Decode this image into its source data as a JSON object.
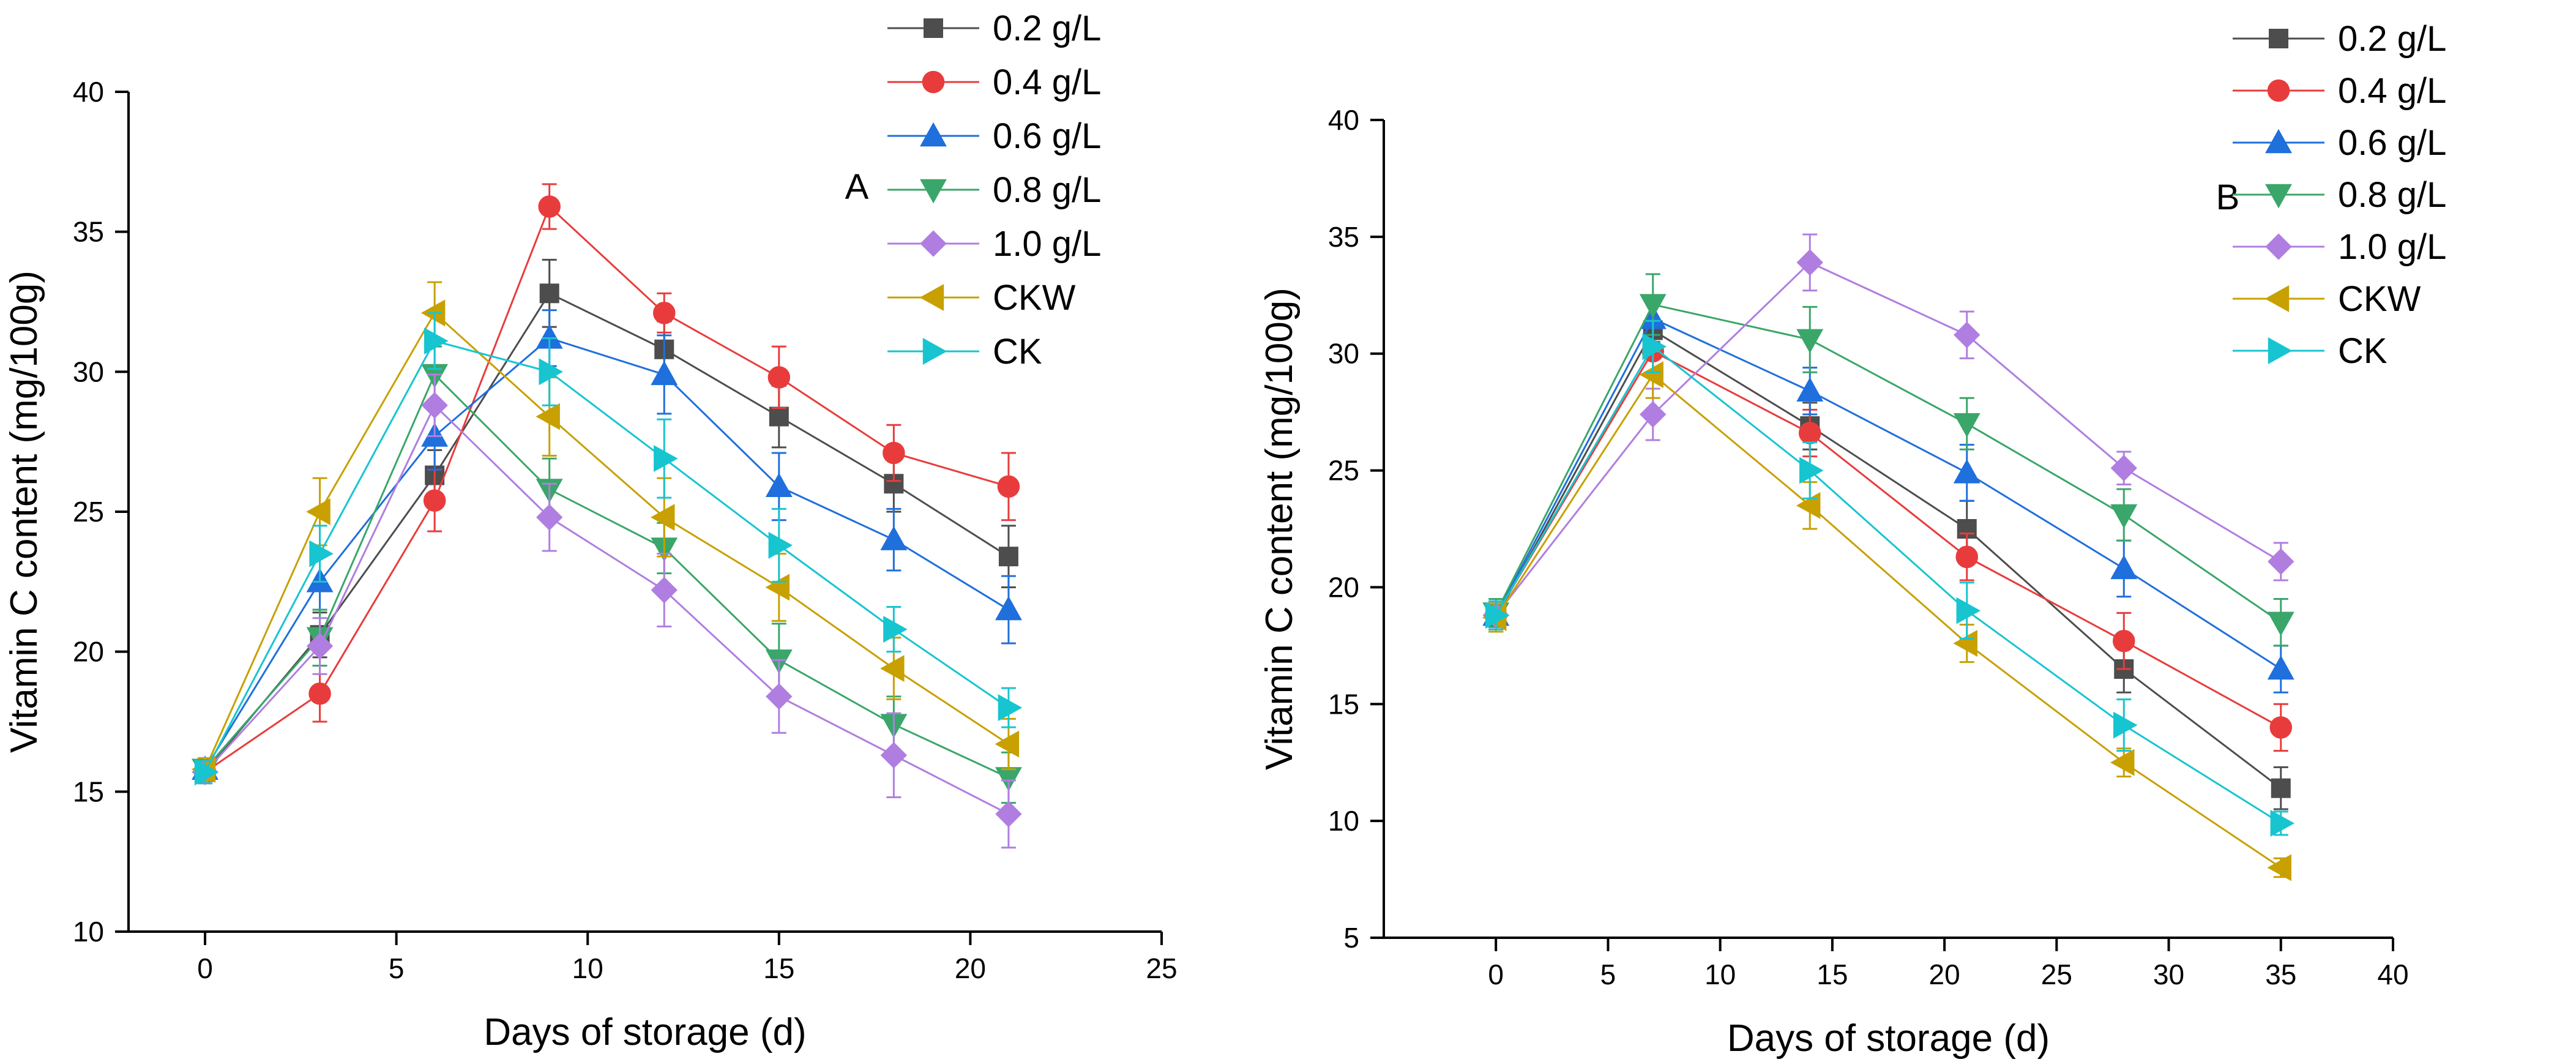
{
  "colors": {
    "0.2 g/L": "#4d4d4d",
    "0.4 g/L": "#e83c3c",
    "0.6 g/L": "#1f6fdc",
    "0.8 g/L": "#3aa66a",
    "1.0 g/L": "#b07ee0",
    "CKW": "#c8a000",
    "CK": "#17c5d0"
  },
  "markers": {
    "0.2 g/L": "square",
    "0.4 g/L": "circle",
    "0.6 g/L": "triangle-up",
    "0.8 g/L": "triangle-down",
    "1.0 g/L": "diamond",
    "CKW": "triangle-left",
    "CK": "triangle-right"
  },
  "chart_data": [
    {
      "type": "line",
      "label": "A",
      "xlabel": "Days of storage (d)",
      "ylabel": "Vitamin C content (mg/100g)",
      "xlim": [
        -2,
        25
      ],
      "ylim": [
        10,
        40
      ],
      "xticks": [
        0,
        5,
        10,
        15,
        20,
        25
      ],
      "yticks": [
        10,
        15,
        20,
        25,
        30,
        35,
        40
      ],
      "x": [
        0,
        3,
        6,
        9,
        12,
        15,
        18,
        21
      ],
      "series": [
        {
          "name": "0.2 g/L",
          "values": [
            15.7,
            20.6,
            26.3,
            32.8,
            30.8,
            28.4,
            26.0,
            23.4
          ],
          "errors": [
            0.4,
            0.8,
            0.9,
            1.2,
            1.0,
            1.1,
            1.0,
            1.1
          ]
        },
        {
          "name": "0.4 g/L",
          "values": [
            15.7,
            18.5,
            25.4,
            35.9,
            32.1,
            29.8,
            27.1,
            25.9
          ],
          "errors": [
            0.4,
            1.0,
            1.1,
            0.8,
            0.7,
            1.1,
            1.0,
            1.2
          ]
        },
        {
          "name": "0.6 g/L",
          "values": [
            15.8,
            22.5,
            27.7,
            31.2,
            29.9,
            25.9,
            24.0,
            21.5
          ],
          "errors": [
            0.4,
            1.0,
            1.2,
            1.0,
            1.4,
            1.2,
            1.1,
            1.2
          ]
        },
        {
          "name": "0.8 g/L",
          "values": [
            15.8,
            20.5,
            29.9,
            25.8,
            23.7,
            19.7,
            17.4,
            15.5
          ],
          "errors": [
            0.4,
            1.0,
            1.0,
            1.1,
            0.9,
            1.3,
            1.0,
            0.9
          ]
        },
        {
          "name": "1.0 g/L",
          "values": [
            15.7,
            20.2,
            28.8,
            24.8,
            22.2,
            18.4,
            16.3,
            14.2
          ],
          "errors": [
            0.4,
            1.0,
            1.1,
            1.2,
            1.3,
            1.3,
            1.5,
            1.2
          ]
        },
        {
          "name": "CKW",
          "values": [
            15.8,
            25.0,
            32.1,
            28.4,
            24.8,
            22.3,
            19.4,
            16.7
          ],
          "errors": [
            0.4,
            1.2,
            1.1,
            1.4,
            1.4,
            1.2,
            1.1,
            0.9
          ]
        },
        {
          "name": "CK",
          "values": [
            15.7,
            23.5,
            31.1,
            30.0,
            26.9,
            23.8,
            20.8,
            18.0
          ],
          "errors": [
            0.4,
            1.0,
            1.0,
            1.2,
            1.4,
            1.3,
            0.8,
            0.7
          ]
        }
      ],
      "legend": [
        "0.2 g/L",
        "0.4 g/L",
        "0.6 g/L",
        "0.8 g/L",
        "1.0 g/L",
        "CKW",
        "CK"
      ]
    },
    {
      "type": "line",
      "label": "B",
      "xlabel": "Days of storage (d)",
      "ylabel": "Vitamin C content (mg/100g)",
      "xlim": [
        -5,
        40
      ],
      "ylim": [
        5,
        40
      ],
      "xticks": [
        0,
        5,
        10,
        15,
        20,
        25,
        30,
        35,
        40
      ],
      "yticks": [
        5,
        10,
        15,
        20,
        25,
        30,
        35,
        40
      ],
      "x": [
        0,
        7,
        14,
        21,
        28,
        35
      ],
      "series": [
        {
          "name": "0.2 g/L",
          "values": [
            18.7,
            31.0,
            26.9,
            22.5,
            16.5,
            11.4
          ],
          "errors": [
            0.6,
            1.2,
            1.0,
            1.2,
            1.0,
            0.9
          ]
        },
        {
          "name": "0.4 g/L",
          "values": [
            18.8,
            30.1,
            26.6,
            21.3,
            17.7,
            14.0
          ],
          "errors": [
            0.6,
            1.0,
            1.0,
            1.0,
            1.2,
            1.0
          ]
        },
        {
          "name": "0.6 g/L",
          "values": [
            18.8,
            31.5,
            28.4,
            24.9,
            20.8,
            16.5
          ],
          "errors": [
            0.6,
            1.0,
            1.0,
            1.2,
            1.2,
            1.0
          ]
        },
        {
          "name": "0.8 g/L",
          "values": [
            18.9,
            32.1,
            30.6,
            27.0,
            23.1,
            18.5
          ],
          "errors": [
            0.6,
            1.3,
            1.4,
            1.1,
            1.1,
            1.0
          ]
        },
        {
          "name": "1.0 g/L",
          "values": [
            18.8,
            27.4,
            33.9,
            30.8,
            25.1,
            21.1
          ],
          "errors": [
            0.6,
            1.1,
            1.2,
            1.0,
            0.7,
            0.8
          ]
        },
        {
          "name": "CKW",
          "values": [
            18.7,
            29.1,
            23.5,
            17.6,
            12.5,
            8.0
          ],
          "errors": [
            0.6,
            1.0,
            1.0,
            0.8,
            0.6,
            0.4
          ]
        },
        {
          "name": "CK",
          "values": [
            18.8,
            30.3,
            25.0,
            19.0,
            14.1,
            9.9
          ],
          "errors": [
            0.6,
            1.1,
            1.2,
            1.2,
            1.1,
            0.5
          ]
        }
      ],
      "legend": [
        "0.2 g/L",
        "0.4 g/L",
        "0.6 g/L",
        "0.8 g/L",
        "1.0 g/L",
        "CKW",
        "CK"
      ]
    }
  ]
}
